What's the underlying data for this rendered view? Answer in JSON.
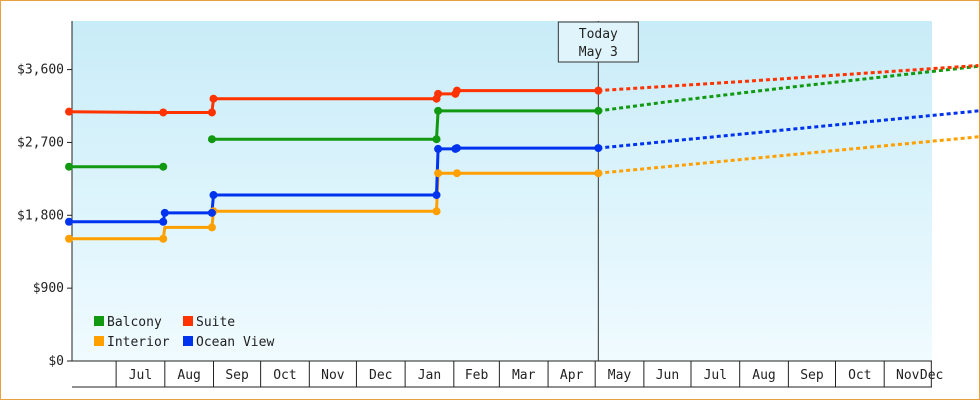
{
  "chart_data": {
    "type": "line",
    "title": "",
    "xlabel": "",
    "ylabel": "",
    "ylim": [
      0,
      4200
    ],
    "y_ticks": [
      {
        "value": 0,
        "label": "$0"
      },
      {
        "value": 900,
        "label": "$900"
      },
      {
        "value": 1800,
        "label": "$1,800"
      },
      {
        "value": 2700,
        "label": "$2,700"
      },
      {
        "value": 3600,
        "label": "$3,600"
      }
    ],
    "x_axis": {
      "start": "2023-06-01",
      "months": [
        "Jul",
        "Aug",
        "Sep",
        "Oct",
        "Nov",
        "Dec",
        "Jan",
        "Feb",
        "Mar",
        "Apr",
        "May",
        "Jun",
        "Jul",
        "Aug",
        "Sep",
        "Oct",
        "Nov",
        "Dec"
      ]
    },
    "today": {
      "date": "2024-05-03",
      "line1": "Today",
      "line2": "May 3"
    },
    "legend": {
      "placement": "bottom-left"
    },
    "grid": false,
    "background": {
      "top": "#c8ecf8",
      "bottom": "#f0fbff"
    },
    "series": [
      {
        "name": "Balcony",
        "color": "#119911",
        "segments": [
          [
            {
              "x": "2023-06-01",
              "y": 2400
            },
            {
              "x": "2023-07-31",
              "y": 2400
            }
          ],
          [
            {
              "x": "2023-08-31",
              "y": 2740
            },
            {
              "x": "2024-01-21",
              "y": 2740
            },
            {
              "x": "2024-01-22",
              "y": 3090
            },
            {
              "x": "2024-05-03",
              "y": 3090
            }
          ]
        ],
        "forecast": [
          {
            "x": "2024-05-03",
            "y": 3090
          },
          {
            "x": "2024-06-15",
            "y": 3200
          },
          {
            "x": "2024-09-01",
            "y": 3380
          },
          {
            "x": "2024-12-31",
            "y": 3640
          }
        ]
      },
      {
        "name": "Suite",
        "color": "#ff3300",
        "segments": [
          [
            {
              "x": "2023-06-01",
              "y": 3080
            },
            {
              "x": "2023-07-31",
              "y": 3070
            },
            {
              "x": "2023-08-31",
              "y": 3070
            },
            {
              "x": "2023-09-01",
              "y": 3240
            },
            {
              "x": "2024-01-21",
              "y": 3240
            },
            {
              "x": "2024-01-22",
              "y": 3300
            },
            {
              "x": "2024-02-02",
              "y": 3300
            },
            {
              "x": "2024-02-03",
              "y": 3340
            },
            {
              "x": "2024-05-03",
              "y": 3340
            }
          ]
        ],
        "forecast": [
          {
            "x": "2024-05-03",
            "y": 3340
          },
          {
            "x": "2024-08-01",
            "y": 3450
          },
          {
            "x": "2024-12-31",
            "y": 3650
          }
        ]
      },
      {
        "name": "Interior",
        "color": "#ffa000",
        "segments": [
          [
            {
              "x": "2023-06-01",
              "y": 1510
            },
            {
              "x": "2023-07-31",
              "y": 1510
            },
            {
              "x": "2023-08-01",
              "y": 1650
            },
            {
              "x": "2023-08-31",
              "y": 1650
            },
            {
              "x": "2023-09-01",
              "y": 1850
            },
            {
              "x": "2024-01-21",
              "y": 1850
            },
            {
              "x": "2024-01-22",
              "y": 2320
            },
            {
              "x": "2024-05-03",
              "y": 2320
            }
          ]
        ],
        "forecast": [
          {
            "x": "2024-05-03",
            "y": 2320
          },
          {
            "x": "2024-12-31",
            "y": 2770
          }
        ]
      },
      {
        "name": "Ocean View",
        "color": "#0033ee",
        "segments": [
          [
            {
              "x": "2023-06-01",
              "y": 1720
            },
            {
              "x": "2023-07-31",
              "y": 1720
            },
            {
              "x": "2023-08-01",
              "y": 1830
            },
            {
              "x": "2023-08-31",
              "y": 1830
            },
            {
              "x": "2023-09-01",
              "y": 2050
            },
            {
              "x": "2024-01-21",
              "y": 2050
            },
            {
              "x": "2024-01-22",
              "y": 2620
            },
            {
              "x": "2024-02-02",
              "y": 2620
            },
            {
              "x": "2024-02-03",
              "y": 2630
            },
            {
              "x": "2024-05-03",
              "y": 2630
            }
          ]
        ],
        "forecast": [
          {
            "x": "2024-05-03",
            "y": 2630
          },
          {
            "x": "2024-08-01",
            "y": 2800
          },
          {
            "x": "2024-12-31",
            "y": 3090
          }
        ]
      }
    ],
    "markers": [
      {
        "series": 0,
        "x": "2023-06-01",
        "y": 2400
      },
      {
        "series": 0,
        "x": "2023-07-31",
        "y": 2400
      },
      {
        "series": 0,
        "x": "2023-08-31",
        "y": 2740
      },
      {
        "series": 0,
        "x": "2024-01-21",
        "y": 2740
      },
      {
        "series": 0,
        "x": "2024-01-22",
        "y": 3090
      },
      {
        "series": 0,
        "x": "2024-05-03",
        "y": 3090
      },
      {
        "series": 1,
        "x": "2023-06-01",
        "y": 3080
      },
      {
        "series": 1,
        "x": "2023-07-31",
        "y": 3070
      },
      {
        "series": 1,
        "x": "2023-08-31",
        "y": 3070
      },
      {
        "series": 1,
        "x": "2023-09-01",
        "y": 3240
      },
      {
        "series": 1,
        "x": "2024-01-21",
        "y": 3240
      },
      {
        "series": 1,
        "x": "2024-01-22",
        "y": 3300
      },
      {
        "series": 1,
        "x": "2024-02-02",
        "y": 3300
      },
      {
        "series": 1,
        "x": "2024-02-03",
        "y": 3340
      },
      {
        "series": 1,
        "x": "2024-05-03",
        "y": 3340
      },
      {
        "series": 2,
        "x": "2023-06-01",
        "y": 1510
      },
      {
        "series": 2,
        "x": "2023-07-31",
        "y": 1510
      },
      {
        "series": 2,
        "x": "2023-08-31",
        "y": 1650
      },
      {
        "series": 2,
        "x": "2023-09-01",
        "y": 1850
      },
      {
        "series": 2,
        "x": "2024-01-21",
        "y": 1850
      },
      {
        "series": 2,
        "x": "2024-01-22",
        "y": 2320
      },
      {
        "series": 2,
        "x": "2024-02-03",
        "y": 2320
      },
      {
        "series": 2,
        "x": "2024-05-03",
        "y": 2320
      },
      {
        "series": 3,
        "x": "2023-06-01",
        "y": 1720
      },
      {
        "series": 3,
        "x": "2023-07-31",
        "y": 1720
      },
      {
        "series": 3,
        "x": "2023-08-01",
        "y": 1830
      },
      {
        "series": 3,
        "x": "2023-08-31",
        "y": 1830
      },
      {
        "series": 3,
        "x": "2023-09-01",
        "y": 2050
      },
      {
        "series": 3,
        "x": "2024-01-21",
        "y": 2050
      },
      {
        "series": 3,
        "x": "2024-01-22",
        "y": 2620
      },
      {
        "series": 3,
        "x": "2024-02-02",
        "y": 2620
      },
      {
        "series": 3,
        "x": "2024-02-03",
        "y": 2630
      },
      {
        "series": 3,
        "x": "2024-05-03",
        "y": 2630
      }
    ]
  }
}
